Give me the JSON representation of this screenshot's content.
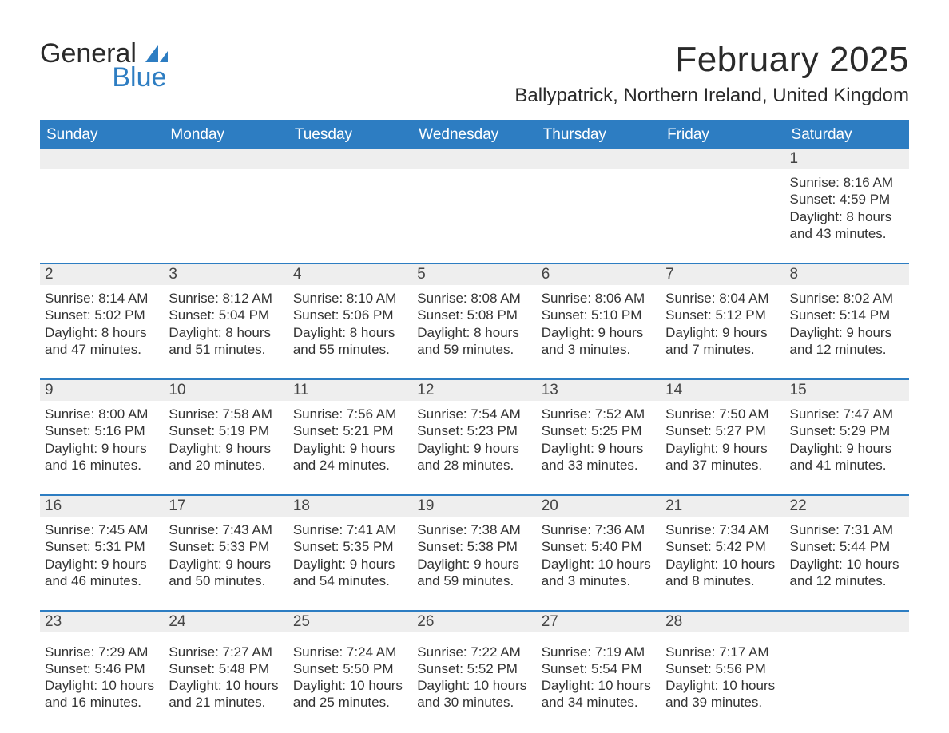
{
  "brand": {
    "word1": "General",
    "word2": "Blue",
    "accent_color": "#2d7dc2",
    "text_color": "#2a2a2a"
  },
  "title": "February 2025",
  "location": "Ballypatrick, Northern Ireland, United Kingdom",
  "colors": {
    "header_bg": "#2d7dc2",
    "header_text": "#ffffff",
    "daynum_bg": "#eeeeee",
    "row_divider": "#2d7dc2",
    "body_text": "#333333",
    "background": "#ffffff"
  },
  "typography": {
    "month_title_fontsize": 44,
    "location_fontsize": 24,
    "dow_fontsize": 19,
    "daynum_fontsize": 19,
    "cell_fontsize": 17
  },
  "days_of_week": [
    "Sunday",
    "Monday",
    "Tuesday",
    "Wednesday",
    "Thursday",
    "Friday",
    "Saturday"
  ],
  "weeks": [
    [
      null,
      null,
      null,
      null,
      null,
      null,
      {
        "n": "1",
        "sunrise": "Sunrise: 8:16 AM",
        "sunset": "Sunset: 4:59 PM",
        "daylight1": "Daylight: 8 hours",
        "daylight2": "and 43 minutes."
      }
    ],
    [
      {
        "n": "2",
        "sunrise": "Sunrise: 8:14 AM",
        "sunset": "Sunset: 5:02 PM",
        "daylight1": "Daylight: 8 hours",
        "daylight2": "and 47 minutes."
      },
      {
        "n": "3",
        "sunrise": "Sunrise: 8:12 AM",
        "sunset": "Sunset: 5:04 PM",
        "daylight1": "Daylight: 8 hours",
        "daylight2": "and 51 minutes."
      },
      {
        "n": "4",
        "sunrise": "Sunrise: 8:10 AM",
        "sunset": "Sunset: 5:06 PM",
        "daylight1": "Daylight: 8 hours",
        "daylight2": "and 55 minutes."
      },
      {
        "n": "5",
        "sunrise": "Sunrise: 8:08 AM",
        "sunset": "Sunset: 5:08 PM",
        "daylight1": "Daylight: 8 hours",
        "daylight2": "and 59 minutes."
      },
      {
        "n": "6",
        "sunrise": "Sunrise: 8:06 AM",
        "sunset": "Sunset: 5:10 PM",
        "daylight1": "Daylight: 9 hours",
        "daylight2": "and 3 minutes."
      },
      {
        "n": "7",
        "sunrise": "Sunrise: 8:04 AM",
        "sunset": "Sunset: 5:12 PM",
        "daylight1": "Daylight: 9 hours",
        "daylight2": "and 7 minutes."
      },
      {
        "n": "8",
        "sunrise": "Sunrise: 8:02 AM",
        "sunset": "Sunset: 5:14 PM",
        "daylight1": "Daylight: 9 hours",
        "daylight2": "and 12 minutes."
      }
    ],
    [
      {
        "n": "9",
        "sunrise": "Sunrise: 8:00 AM",
        "sunset": "Sunset: 5:16 PM",
        "daylight1": "Daylight: 9 hours",
        "daylight2": "and 16 minutes."
      },
      {
        "n": "10",
        "sunrise": "Sunrise: 7:58 AM",
        "sunset": "Sunset: 5:19 PM",
        "daylight1": "Daylight: 9 hours",
        "daylight2": "and 20 minutes."
      },
      {
        "n": "11",
        "sunrise": "Sunrise: 7:56 AM",
        "sunset": "Sunset: 5:21 PM",
        "daylight1": "Daylight: 9 hours",
        "daylight2": "and 24 minutes."
      },
      {
        "n": "12",
        "sunrise": "Sunrise: 7:54 AM",
        "sunset": "Sunset: 5:23 PM",
        "daylight1": "Daylight: 9 hours",
        "daylight2": "and 28 minutes."
      },
      {
        "n": "13",
        "sunrise": "Sunrise: 7:52 AM",
        "sunset": "Sunset: 5:25 PM",
        "daylight1": "Daylight: 9 hours",
        "daylight2": "and 33 minutes."
      },
      {
        "n": "14",
        "sunrise": "Sunrise: 7:50 AM",
        "sunset": "Sunset: 5:27 PM",
        "daylight1": "Daylight: 9 hours",
        "daylight2": "and 37 minutes."
      },
      {
        "n": "15",
        "sunrise": "Sunrise: 7:47 AM",
        "sunset": "Sunset: 5:29 PM",
        "daylight1": "Daylight: 9 hours",
        "daylight2": "and 41 minutes."
      }
    ],
    [
      {
        "n": "16",
        "sunrise": "Sunrise: 7:45 AM",
        "sunset": "Sunset: 5:31 PM",
        "daylight1": "Daylight: 9 hours",
        "daylight2": "and 46 minutes."
      },
      {
        "n": "17",
        "sunrise": "Sunrise: 7:43 AM",
        "sunset": "Sunset: 5:33 PM",
        "daylight1": "Daylight: 9 hours",
        "daylight2": "and 50 minutes."
      },
      {
        "n": "18",
        "sunrise": "Sunrise: 7:41 AM",
        "sunset": "Sunset: 5:35 PM",
        "daylight1": "Daylight: 9 hours",
        "daylight2": "and 54 minutes."
      },
      {
        "n": "19",
        "sunrise": "Sunrise: 7:38 AM",
        "sunset": "Sunset: 5:38 PM",
        "daylight1": "Daylight: 9 hours",
        "daylight2": "and 59 minutes."
      },
      {
        "n": "20",
        "sunrise": "Sunrise: 7:36 AM",
        "sunset": "Sunset: 5:40 PM",
        "daylight1": "Daylight: 10 hours",
        "daylight2": "and 3 minutes."
      },
      {
        "n": "21",
        "sunrise": "Sunrise: 7:34 AM",
        "sunset": "Sunset: 5:42 PM",
        "daylight1": "Daylight: 10 hours",
        "daylight2": "and 8 minutes."
      },
      {
        "n": "22",
        "sunrise": "Sunrise: 7:31 AM",
        "sunset": "Sunset: 5:44 PM",
        "daylight1": "Daylight: 10 hours",
        "daylight2": "and 12 minutes."
      }
    ],
    [
      {
        "n": "23",
        "sunrise": "Sunrise: 7:29 AM",
        "sunset": "Sunset: 5:46 PM",
        "daylight1": "Daylight: 10 hours",
        "daylight2": "and 16 minutes."
      },
      {
        "n": "24",
        "sunrise": "Sunrise: 7:27 AM",
        "sunset": "Sunset: 5:48 PM",
        "daylight1": "Daylight: 10 hours",
        "daylight2": "and 21 minutes."
      },
      {
        "n": "25",
        "sunrise": "Sunrise: 7:24 AM",
        "sunset": "Sunset: 5:50 PM",
        "daylight1": "Daylight: 10 hours",
        "daylight2": "and 25 minutes."
      },
      {
        "n": "26",
        "sunrise": "Sunrise: 7:22 AM",
        "sunset": "Sunset: 5:52 PM",
        "daylight1": "Daylight: 10 hours",
        "daylight2": "and 30 minutes."
      },
      {
        "n": "27",
        "sunrise": "Sunrise: 7:19 AM",
        "sunset": "Sunset: 5:54 PM",
        "daylight1": "Daylight: 10 hours",
        "daylight2": "and 34 minutes."
      },
      {
        "n": "28",
        "sunrise": "Sunrise: 7:17 AM",
        "sunset": "Sunset: 5:56 PM",
        "daylight1": "Daylight: 10 hours",
        "daylight2": "and 39 minutes."
      },
      null
    ]
  ]
}
